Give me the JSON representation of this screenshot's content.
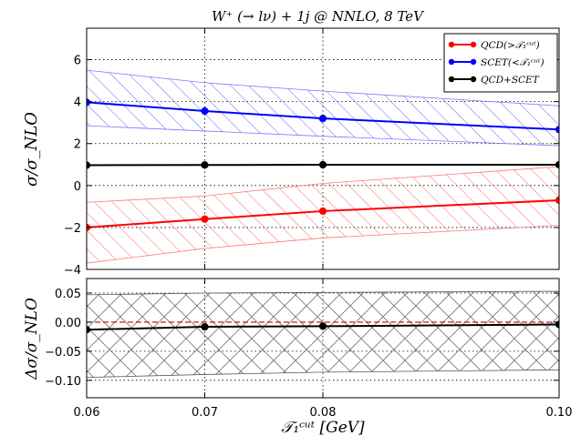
{
  "chart_data": {
    "type": "line",
    "title": "W⁺ (→ lν) + 1j @ NNLO, 8 TeV",
    "xlabel": "𝒯₁ᶜᵘᵗ [GeV]",
    "x": [
      0.06,
      0.07,
      0.08,
      0.1
    ],
    "xticks": [
      "0.06",
      "0.07",
      "0.08",
      "0.10"
    ],
    "xlim": [
      0.06,
      0.1
    ],
    "grid": true,
    "panels": [
      {
        "name": "top",
        "ylabel": "σ/σ_NLO",
        "ylim": [
          -4,
          7.5
        ],
        "yticks": [
          "6",
          "4",
          "2",
          "0",
          "−2",
          "−4"
        ],
        "legend_position": "top-right",
        "series": [
          {
            "name": "QCD(>𝒯₁ᶜᵘᵗ)",
            "color": "#ff0000",
            "values": [
              -2.0,
              -1.6,
              -1.22,
              -0.7
            ],
            "band_upper": [
              -0.8,
              -0.5,
              0.1,
              0.9
            ],
            "band_lower": [
              -3.7,
              -3.0,
              -2.5,
              -1.9
            ]
          },
          {
            "name": "SCET(<𝒯₁ᶜᵘᵗ)",
            "color": "#0000ff",
            "values": [
              3.97,
              3.55,
              3.2,
              2.67
            ],
            "band_upper": [
              5.5,
              4.9,
              4.5,
              3.8
            ],
            "band_lower": [
              2.85,
              2.6,
              2.35,
              1.9
            ]
          },
          {
            "name": "QCD+SCET",
            "color": "#000000",
            "values": [
              0.97,
              0.98,
              0.99,
              0.99
            ]
          }
        ]
      },
      {
        "name": "bottom",
        "ylabel": "Δσ/σ_NLO",
        "ylim": [
          -0.13,
          0.075
        ],
        "yticks": [
          "0.05",
          "0.00",
          "−0.05",
          "−0.10"
        ],
        "reference_line": {
          "value": 0.0,
          "color": "#cc0000"
        },
        "series": [
          {
            "name": "",
            "color": "#000000",
            "values": [
              -0.013,
              -0.008,
              -0.007,
              -0.004
            ],
            "band_upper": [
              0.047,
              0.05,
              0.051,
              0.053
            ],
            "band_lower": [
              -0.095,
              -0.09,
              -0.086,
              -0.082
            ]
          }
        ]
      }
    ]
  }
}
